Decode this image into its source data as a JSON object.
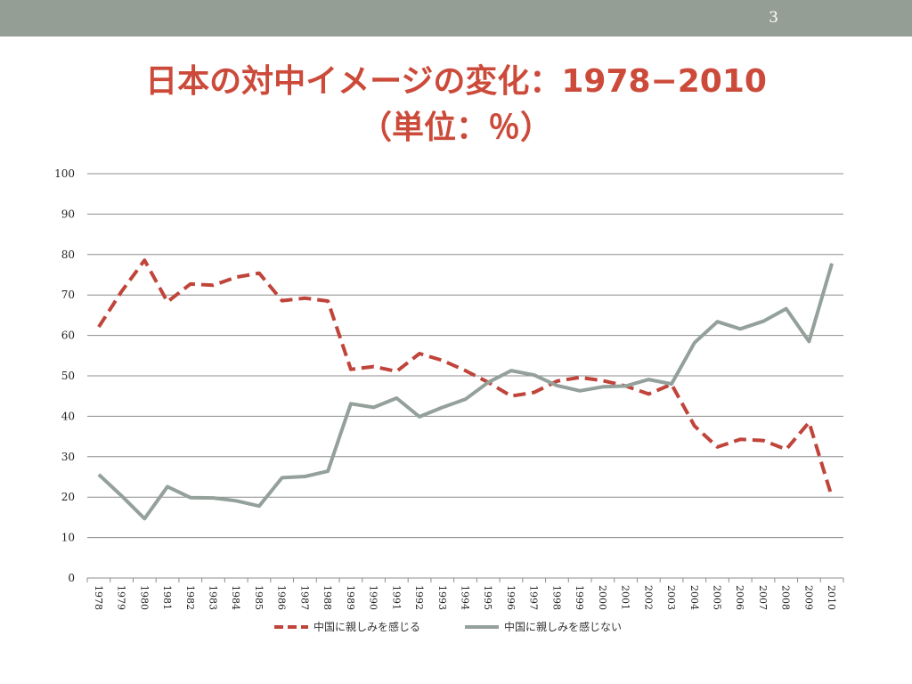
{
  "slide": {
    "page_number": "3",
    "title_line1": "日本の対中イメージの変化：1978−2010",
    "title_line2": "（単位：％）"
  },
  "colors": {
    "header_bar": "#949e95",
    "title": "#cc4a3a",
    "series_affinity": "#c0443a",
    "series_no_affinity": "#94a09a",
    "gridline": "#8c8c8c"
  },
  "chart_data": {
    "type": "line",
    "title": "",
    "xlabel": "",
    "ylabel": "",
    "ylim": [
      0,
      100
    ],
    "y_ticks": [
      0,
      10,
      20,
      30,
      40,
      50,
      60,
      70,
      80,
      90,
      100
    ],
    "grid": true,
    "legend_position": "bottom",
    "categories": [
      "1978",
      "1979",
      "1980",
      "1981",
      "1982",
      "1983",
      "1984",
      "1985",
      "1986",
      "1987",
      "1988",
      "1989",
      "1990",
      "1991",
      "1992",
      "1993",
      "1994",
      "1995",
      "1996",
      "1997",
      "1998",
      "1999",
      "2000",
      "2001",
      "2002",
      "2003",
      "2004",
      "2005",
      "2006",
      "2007",
      "2008",
      "2009",
      "2010"
    ],
    "series": [
      {
        "name": "中国に親しみを感じる",
        "style": "dashed",
        "color": "#c0443a",
        "values": [
          62.1,
          70.9,
          78.6,
          68.3,
          72.7,
          72.4,
          74.4,
          75.4,
          68.6,
          69.2,
          68.5,
          51.6,
          52.3,
          51.1,
          55.5,
          53.8,
          51.3,
          48.4,
          45.0,
          45.9,
          48.7,
          49.6,
          48.8,
          47.5,
          45.5,
          47.9,
          37.6,
          32.4,
          34.3,
          34.0,
          31.8,
          38.5,
          20.0
        ]
      },
      {
        "name": "中国に親しみを感じない",
        "style": "solid",
        "color": "#94a09a",
        "values": [
          25.6,
          20.3,
          14.7,
          22.6,
          19.9,
          19.8,
          19.1,
          17.8,
          24.8,
          25.1,
          26.4,
          43.1,
          42.2,
          44.5,
          39.9,
          42.2,
          44.2,
          48.4,
          51.3,
          50.2,
          47.6,
          46.3,
          47.3,
          47.5,
          49.1,
          48.0,
          58.2,
          63.4,
          61.6,
          63.5,
          66.6,
          58.5,
          77.8
        ]
      }
    ]
  }
}
